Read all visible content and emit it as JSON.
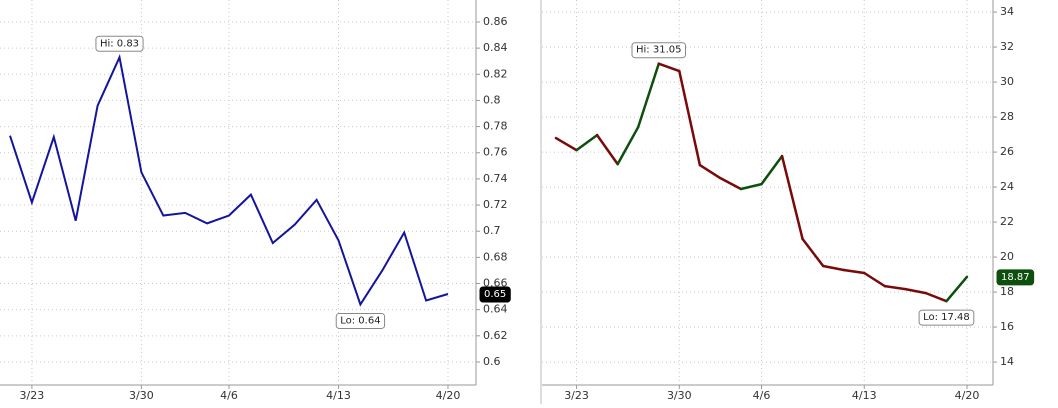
{
  "chart_data": [
    {
      "type": "line",
      "categories": [
        null,
        "3/23",
        null,
        null,
        null,
        null,
        "3/30",
        null,
        null,
        null,
        "4/6",
        null,
        null,
        null,
        null,
        "4/13",
        null,
        null,
        null,
        null,
        "4/20"
      ],
      "series": [
        {
          "color": "#14149e",
          "values": [
            0.773,
            0.722,
            0.772,
            0.708,
            0.796,
            0.833,
            0.745,
            0.712,
            0.714,
            0.706,
            0.712,
            0.728,
            0.691,
            0.705,
            0.724,
            0.693,
            0.644,
            0.67,
            0.699,
            0.647,
            0.652
          ]
        }
      ],
      "ylim": [
        0.5824,
        0.8768
      ],
      "yticks": [
        0.6,
        0.62,
        0.64,
        0.66,
        0.68,
        0.7,
        0.72,
        0.74,
        0.76,
        0.78,
        0.8,
        0.82,
        0.84,
        0.86
      ],
      "grid": true,
      "hi_label": "Hi: 0.83",
      "lo_label": "Lo: 0.64",
      "last_label": "0.65",
      "last_label_color": "#000000"
    },
    {
      "type": "updown-line",
      "categories": [
        null,
        "3/23",
        null,
        null,
        null,
        null,
        "3/30",
        null,
        null,
        null,
        "4/6",
        null,
        null,
        null,
        null,
        "4/13",
        null,
        null,
        null,
        null,
        "4/20"
      ],
      "series": [
        {
          "up_color": "#0d4f0d",
          "down_color": "#7a0a0a",
          "values": [
            26.8,
            26.11,
            26.97,
            25.31,
            27.43,
            31.05,
            30.63,
            25.26,
            24.51,
            23.89,
            24.17,
            25.77,
            21.03,
            19.49,
            19.26,
            19.09,
            18.34,
            18.17,
            17.94,
            17.48,
            18.87
          ]
        }
      ],
      "ylim": [
        12.69,
        34.69
      ],
      "yticks": [
        14,
        16,
        18,
        20,
        22,
        24,
        26,
        28,
        30,
        32,
        34
      ],
      "grid": true,
      "hi_label": "Hi: 31.05",
      "lo_label": "Lo: 17.48",
      "last_label": "18.87",
      "last_label_color": "#0d4f0d"
    }
  ]
}
